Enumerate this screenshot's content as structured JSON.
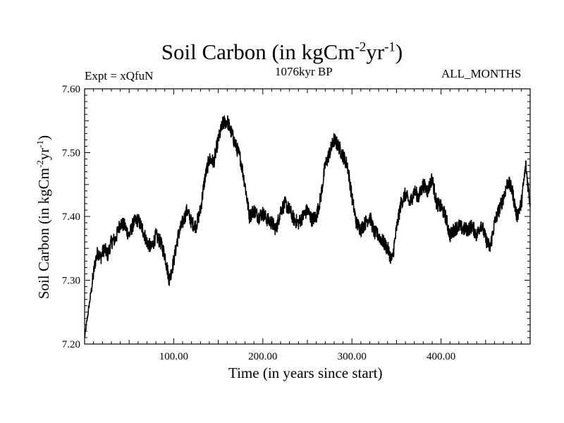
{
  "chart_data": {
    "type": "line",
    "title": {
      "base": "Soil Carbon (in kgCm",
      "sup1": "-2",
      "mid": "yr",
      "sup2": "-1",
      "close": ")"
    },
    "subtitle_left": "Expt = xQfuN",
    "subtitle_center": "1076kyr BP",
    "subtitle_right": "ALL_MONTHS",
    "xlabel": "Time (in years since start)",
    "ylabel": {
      "base": "Soil Carbon (in kgCm",
      "sup1": "-2",
      "mid": "yr",
      "sup2": "-1",
      "close": ")"
    },
    "xlim": [
      0,
      500
    ],
    "ylim": [
      7.2,
      7.6
    ],
    "x_ticks": [
      100,
      200,
      300,
      400
    ],
    "x_tick_labels": [
      "100.00",
      "200.00",
      "300.00",
      "400.00"
    ],
    "y_ticks": [
      7.2,
      7.3,
      7.4,
      7.5,
      7.6
    ],
    "y_tick_labels": [
      "7.20",
      "7.30",
      "7.40",
      "7.50",
      "7.60"
    ],
    "series": [
      {
        "name": "Soil Carbon",
        "color": "#000000",
        "x": [
          0,
          3,
          6,
          9,
          12,
          15,
          18,
          22,
          26,
          30,
          35,
          40,
          45,
          50,
          55,
          60,
          65,
          70,
          75,
          80,
          85,
          90,
          95,
          100,
          105,
          110,
          115,
          120,
          125,
          130,
          135,
          140,
          145,
          150,
          155,
          160,
          165,
          170,
          175,
          180,
          185,
          190,
          195,
          200,
          205,
          210,
          215,
          220,
          225,
          230,
          235,
          240,
          245,
          250,
          255,
          260,
          265,
          270,
          275,
          280,
          285,
          290,
          295,
          300,
          305,
          310,
          315,
          320,
          325,
          330,
          335,
          340,
          345,
          350,
          355,
          360,
          365,
          370,
          375,
          380,
          385,
          390,
          395,
          400,
          405,
          410,
          415,
          420,
          425,
          430,
          435,
          440,
          445,
          450,
          455,
          460,
          465,
          470,
          475,
          480,
          485,
          490,
          495,
          500
        ],
        "y": [
          7.21,
          7.24,
          7.27,
          7.3,
          7.33,
          7.345,
          7.335,
          7.35,
          7.34,
          7.36,
          7.365,
          7.39,
          7.385,
          7.37,
          7.39,
          7.395,
          7.38,
          7.36,
          7.35,
          7.37,
          7.36,
          7.34,
          7.3,
          7.33,
          7.37,
          7.39,
          7.41,
          7.39,
          7.385,
          7.41,
          7.46,
          7.49,
          7.485,
          7.52,
          7.545,
          7.55,
          7.53,
          7.51,
          7.49,
          7.45,
          7.4,
          7.41,
          7.4,
          7.405,
          7.395,
          7.39,
          7.38,
          7.41,
          7.42,
          7.41,
          7.395,
          7.39,
          7.4,
          7.41,
          7.395,
          7.4,
          7.43,
          7.48,
          7.5,
          7.52,
          7.51,
          7.495,
          7.48,
          7.43,
          7.39,
          7.38,
          7.39,
          7.4,
          7.375,
          7.37,
          7.36,
          7.35,
          7.33,
          7.38,
          7.42,
          7.435,
          7.42,
          7.44,
          7.43,
          7.45,
          7.44,
          7.46,
          7.42,
          7.415,
          7.4,
          7.37,
          7.38,
          7.385,
          7.38,
          7.38,
          7.385,
          7.37,
          7.39,
          7.365,
          7.35,
          7.39,
          7.41,
          7.43,
          7.455,
          7.44,
          7.4,
          7.42,
          7.48,
          7.42
        ],
        "noise_amplitude": 0.012
      }
    ]
  }
}
